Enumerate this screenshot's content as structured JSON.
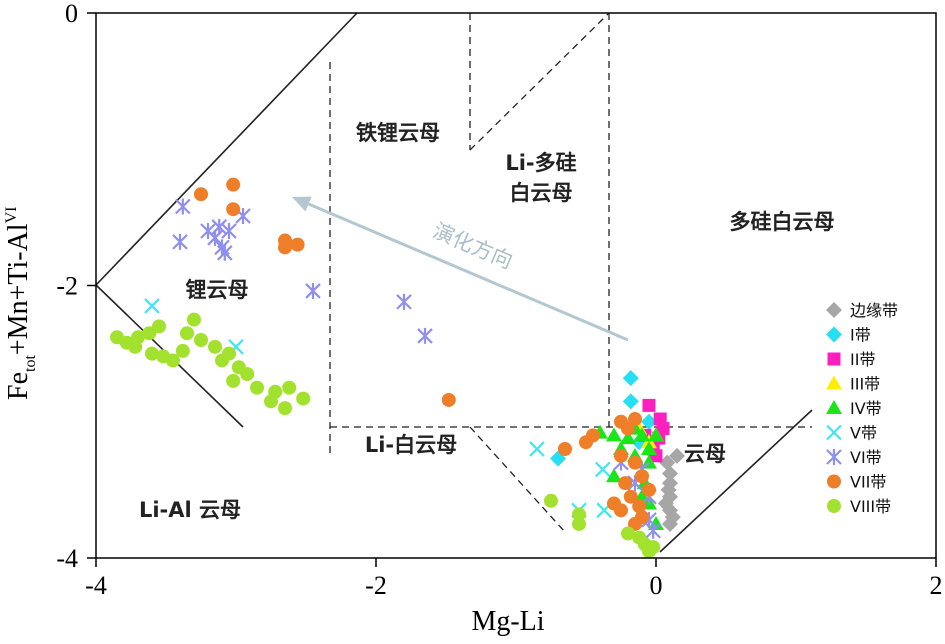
{
  "chart_data": {
    "type": "scatter",
    "title": "",
    "xlabel": "Mg-Li",
    "ylabel_main": "Fe",
    "ylabel_sub": "tot",
    "ylabel_rest": "+Mn+Ti-Al",
    "ylabel_sup": "VI",
    "xlim": [
      -4,
      2
    ],
    "ylim": [
      -4,
      0
    ],
    "xticks": [
      "-4",
      "-2",
      "0",
      "2"
    ],
    "yticks": [
      "0",
      "-2",
      "-4"
    ],
    "fields": {
      "zinnwaldite": "铁锂云母",
      "li_phengite_1": "Li-多硅",
      "li_phengite_2": "白云母",
      "phengite": "多硅白云母",
      "lepidolite": "锂云母",
      "li_muscovite": "Li-白云母",
      "muscovite": "云母",
      "li_al_mica": "Li-Al 云母"
    },
    "arrow_label": "演化方向",
    "arrow": {
      "from": [
        -0.2,
        -2.4
      ],
      "to": [
        -2.6,
        -1.35
      ]
    },
    "series": [
      {
        "name": "边缘带",
        "marker": "diamond",
        "color": "#a6a6a6",
        "points": [
          [
            0.08,
            -3.3
          ],
          [
            0.1,
            -3.38
          ],
          [
            0.1,
            -3.45
          ],
          [
            0.09,
            -3.5
          ],
          [
            0.1,
            -3.55
          ],
          [
            0.07,
            -3.6
          ],
          [
            0.1,
            -3.65
          ],
          [
            0.12,
            -3.7
          ],
          [
            0.1,
            -3.75
          ],
          [
            0.15,
            -3.25
          ]
        ]
      },
      {
        "name": "I带",
        "marker": "diamond",
        "color": "#26dff2",
        "points": [
          [
            -0.18,
            -2.68
          ],
          [
            -0.18,
            -2.85
          ],
          [
            -0.05,
            -3.0
          ],
          [
            -0.12,
            -3.15
          ],
          [
            -0.7,
            -3.27
          ]
        ]
      },
      {
        "name": "II带",
        "marker": "square",
        "color": "#ff1fbf",
        "points": [
          [
            -0.05,
            -2.88
          ],
          [
            0.03,
            -2.98
          ],
          [
            0.05,
            -3.05
          ],
          [
            0.02,
            -3.12
          ],
          [
            -0.02,
            -3.2
          ],
          [
            0.0,
            -3.25
          ],
          [
            -0.08,
            -3.1
          ]
        ]
      },
      {
        "name": "III带",
        "marker": "triangle",
        "color": "#ffee00",
        "points": [
          [
            -0.12,
            -3.05
          ],
          [
            0.0,
            -3.1
          ],
          [
            -0.05,
            -3.15
          ]
        ]
      },
      {
        "name": "IV带",
        "marker": "triangle",
        "color": "#19e619",
        "points": [
          [
            -0.4,
            -3.08
          ],
          [
            -0.3,
            -3.1
          ],
          [
            -0.2,
            -3.12
          ],
          [
            -0.15,
            -3.05
          ],
          [
            -0.1,
            -3.1
          ],
          [
            -0.05,
            -3.2
          ],
          [
            0.0,
            -3.1
          ],
          [
            -0.25,
            -3.2
          ],
          [
            -0.15,
            -3.25
          ],
          [
            -0.05,
            -3.3
          ],
          [
            -0.08,
            -3.45
          ],
          [
            -0.1,
            -3.55
          ],
          [
            -0.05,
            -3.6
          ],
          [
            -0.12,
            -3.7
          ],
          [
            0.0,
            -3.75
          ],
          [
            -0.3,
            -3.4
          ]
        ]
      },
      {
        "name": "V带",
        "marker": "x",
        "color": "#3ee6f2",
        "points": [
          [
            -3.6,
            -2.15
          ],
          [
            -3.0,
            -2.45
          ],
          [
            -0.85,
            -3.2
          ],
          [
            -0.55,
            -3.65
          ],
          [
            -0.37,
            -3.65
          ],
          [
            -0.38,
            -3.35
          ]
        ]
      },
      {
        "name": "VI带",
        "marker": "asterisk",
        "color": "#8f8ff0",
        "points": [
          [
            -3.38,
            -1.42
          ],
          [
            -3.4,
            -1.68
          ],
          [
            -3.2,
            -1.6
          ],
          [
            -3.15,
            -1.65
          ],
          [
            -3.1,
            -1.72
          ],
          [
            -3.05,
            -1.6
          ],
          [
            -3.08,
            -1.76
          ],
          [
            -2.95,
            -1.49
          ],
          [
            -3.12,
            -1.57
          ],
          [
            -2.45,
            -2.04
          ],
          [
            -1.8,
            -2.12
          ],
          [
            -1.65,
            -2.37
          ],
          [
            -0.25,
            -3.3
          ],
          [
            -0.1,
            -3.35
          ],
          [
            -0.05,
            -3.55
          ],
          [
            -0.15,
            -3.45
          ],
          [
            -0.05,
            -3.72
          ],
          [
            -0.02,
            -3.8
          ]
        ]
      },
      {
        "name": "VII带",
        "marker": "circle",
        "color": "#ef7e29",
        "points": [
          [
            -3.25,
            -1.33
          ],
          [
            -3.02,
            -1.26
          ],
          [
            -3.02,
            -1.44
          ],
          [
            -2.65,
            -1.67
          ],
          [
            -2.65,
            -1.72
          ],
          [
            -2.56,
            -1.7
          ],
          [
            -1.48,
            -2.84
          ],
          [
            -0.65,
            -3.2
          ],
          [
            -0.5,
            -3.15
          ],
          [
            -0.45,
            -3.1
          ],
          [
            -0.25,
            -3.0
          ],
          [
            -0.2,
            -3.05
          ],
          [
            -0.15,
            -2.98
          ],
          [
            -0.25,
            -3.25
          ],
          [
            -0.15,
            -3.3
          ],
          [
            -0.3,
            -3.6
          ],
          [
            -0.25,
            -3.65
          ],
          [
            -0.18,
            -3.55
          ],
          [
            -0.1,
            -3.7
          ],
          [
            -0.15,
            -3.75
          ],
          [
            -0.1,
            -3.4
          ],
          [
            -0.05,
            -3.5
          ],
          [
            -0.22,
            -3.45
          ],
          [
            -0.12,
            -3.62
          ]
        ]
      },
      {
        "name": "VIII带",
        "marker": "circle",
        "color": "#a2e22e",
        "points": [
          [
            -3.85,
            -2.38
          ],
          [
            -3.78,
            -2.42
          ],
          [
            -3.72,
            -2.45
          ],
          [
            -3.7,
            -2.38
          ],
          [
            -3.62,
            -2.35
          ],
          [
            -3.55,
            -2.3
          ],
          [
            -3.6,
            -2.5
          ],
          [
            -3.52,
            -2.52
          ],
          [
            -3.45,
            -2.55
          ],
          [
            -3.38,
            -2.48
          ],
          [
            -3.35,
            -2.35
          ],
          [
            -3.3,
            -2.25
          ],
          [
            -3.25,
            -2.4
          ],
          [
            -3.15,
            -2.45
          ],
          [
            -3.1,
            -2.55
          ],
          [
            -3.05,
            -2.5
          ],
          [
            -2.98,
            -2.6
          ],
          [
            -2.92,
            -2.65
          ],
          [
            -3.02,
            -2.7
          ],
          [
            -2.85,
            -2.75
          ],
          [
            -2.72,
            -2.78
          ],
          [
            -2.65,
            -2.9
          ],
          [
            -2.62,
            -2.75
          ],
          [
            -2.52,
            -2.83
          ],
          [
            -2.75,
            -2.85
          ],
          [
            -0.75,
            -3.58
          ],
          [
            -0.55,
            -3.68
          ],
          [
            -0.55,
            -3.75
          ],
          [
            -0.2,
            -3.82
          ],
          [
            -0.12,
            -3.85
          ],
          [
            -0.08,
            -3.9
          ],
          [
            -0.05,
            -3.95
          ],
          [
            -0.02,
            -3.92
          ]
        ]
      }
    ]
  }
}
